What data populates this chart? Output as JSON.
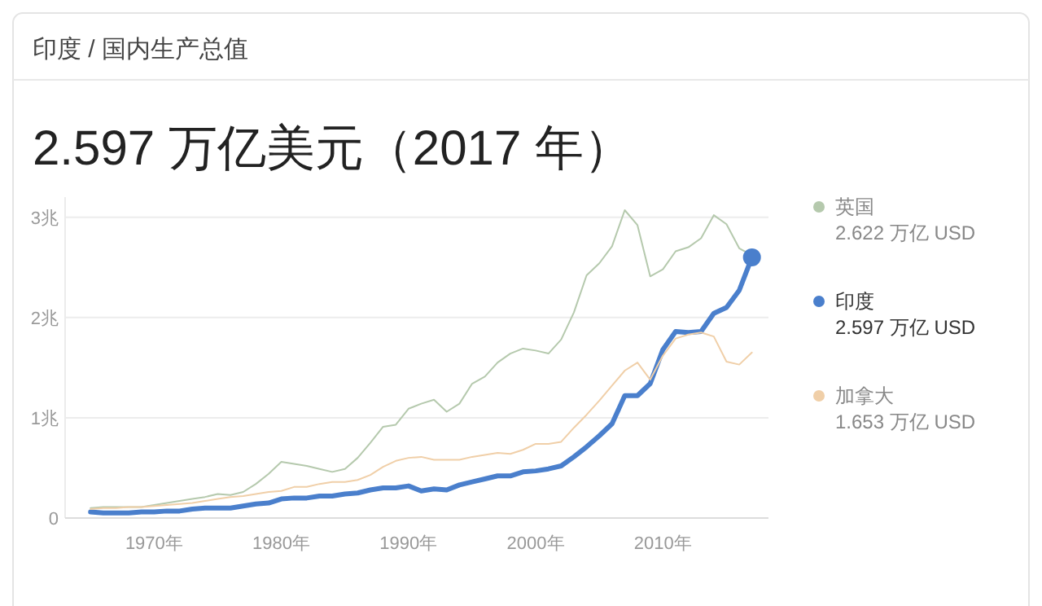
{
  "chart_data": {
    "type": "line",
    "title": "印度 / 国内生产总值",
    "subtitle": "2.597 万亿美元（2017 年）",
    "x": [
      1965,
      1966,
      1967,
      1968,
      1969,
      1970,
      1971,
      1972,
      1973,
      1974,
      1975,
      1976,
      1977,
      1978,
      1979,
      1980,
      1981,
      1982,
      1983,
      1984,
      1985,
      1986,
      1987,
      1988,
      1989,
      1990,
      1991,
      1992,
      1993,
      1994,
      1995,
      1996,
      1997,
      1998,
      1999,
      2000,
      2001,
      2002,
      2003,
      2004,
      2005,
      2006,
      2007,
      2008,
      2009,
      2010,
      2011,
      2012,
      2013,
      2014,
      2015,
      2016,
      2017
    ],
    "series": [
      {
        "name": "英国",
        "color": "#b5c9ad",
        "values": [
          0.1,
          0.11,
          0.11,
          0.11,
          0.11,
          0.13,
          0.15,
          0.17,
          0.19,
          0.21,
          0.24,
          0.23,
          0.26,
          0.34,
          0.44,
          0.56,
          0.54,
          0.52,
          0.49,
          0.46,
          0.49,
          0.6,
          0.75,
          0.91,
          0.93,
          1.09,
          1.14,
          1.18,
          1.06,
          1.14,
          1.34,
          1.41,
          1.55,
          1.64,
          1.69,
          1.67,
          1.64,
          1.78,
          2.05,
          2.42,
          2.54,
          2.71,
          3.07,
          2.92,
          2.41,
          2.48,
          2.66,
          2.7,
          2.79,
          3.02,
          2.93,
          2.69,
          2.62
        ]
      },
      {
        "name": "印度",
        "color": "#4a7fcc",
        "values": [
          0.06,
          0.05,
          0.05,
          0.05,
          0.06,
          0.06,
          0.07,
          0.07,
          0.09,
          0.1,
          0.1,
          0.1,
          0.12,
          0.14,
          0.15,
          0.19,
          0.2,
          0.2,
          0.22,
          0.22,
          0.24,
          0.25,
          0.28,
          0.3,
          0.3,
          0.32,
          0.27,
          0.29,
          0.28,
          0.33,
          0.36,
          0.39,
          0.42,
          0.42,
          0.46,
          0.47,
          0.49,
          0.52,
          0.61,
          0.71,
          0.82,
          0.94,
          1.22,
          1.22,
          1.34,
          1.68,
          1.86,
          1.85,
          1.86,
          2.04,
          2.1,
          2.27,
          2.6
        ]
      },
      {
        "name": "加拿大",
        "color": "#f0cfa8",
        "values": [
          0.09,
          0.1,
          0.1,
          0.11,
          0.11,
          0.12,
          0.13,
          0.14,
          0.15,
          0.17,
          0.19,
          0.21,
          0.22,
          0.24,
          0.26,
          0.27,
          0.31,
          0.31,
          0.34,
          0.36,
          0.36,
          0.38,
          0.43,
          0.51,
          0.57,
          0.6,
          0.61,
          0.58,
          0.58,
          0.58,
          0.61,
          0.63,
          0.65,
          0.64,
          0.68,
          0.74,
          0.74,
          0.76,
          0.9,
          1.03,
          1.17,
          1.32,
          1.47,
          1.55,
          1.38,
          1.62,
          1.79,
          1.83,
          1.85,
          1.81,
          1.56,
          1.53,
          1.65
        ]
      },
      {
        "type": "scatter",
        "color": "#4a7fcc",
        "x": [
          2017
        ],
        "values": [
          2.6
        ]
      }
    ],
    "annotations": [
      "2.622 万亿 USD",
      "2.597 万亿 USD",
      "1.653 万亿 USD"
    ],
    "xlim": [
      1963,
      2018.3
    ],
    "ylim": [
      0,
      3.2
    ],
    "xticks": [
      {
        "value": 1970,
        "label": "1970年"
      },
      {
        "value": 1980,
        "label": "1980年"
      },
      {
        "value": 1990,
        "label": "1990年"
      },
      {
        "value": 2000,
        "label": "2000年"
      },
      {
        "value": 2010,
        "label": "2010年"
      }
    ],
    "yticks": [
      0,
      {
        "value": 1,
        "label": "1兆"
      },
      {
        "value": 2,
        "label": "2兆"
      },
      {
        "value": 3,
        "label": "3兆"
      }
    ],
    "grid": "y",
    "legend": "right"
  }
}
